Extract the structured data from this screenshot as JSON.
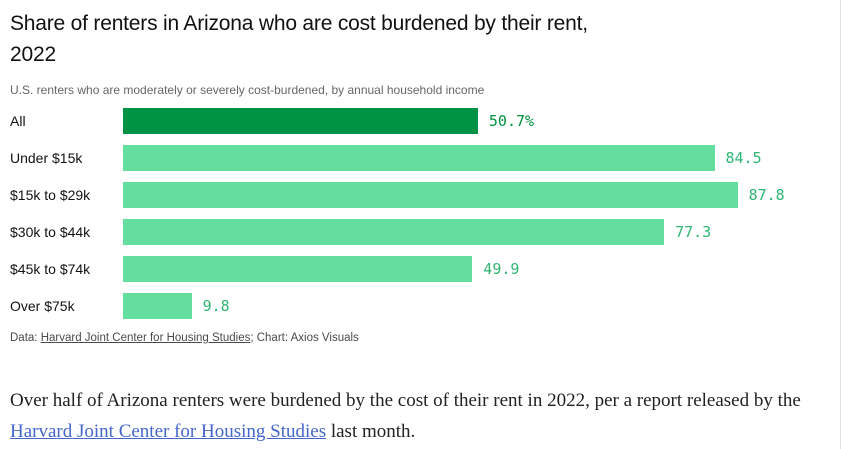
{
  "header": {
    "title": "Share of renters in Arizona who are cost burdened by their rent,\n2022",
    "subtitle": "U.S. renters who are moderately or severely cost-burdened, by annual household income"
  },
  "chart_data": {
    "type": "bar",
    "orientation": "horizontal",
    "title": "Share of renters in Arizona who are cost burdened by their rent, 2022",
    "subtitle": "U.S. renters who are moderately or severely cost-burdened, by annual household income",
    "categories": [
      "All",
      "Under $15k",
      "$15k to $29k",
      "$30k to $44k",
      "$45k to $74k",
      "Over $75k"
    ],
    "values": [
      50.7,
      84.5,
      87.8,
      77.3,
      49.9,
      9.8
    ],
    "value_labels": [
      "50.7%",
      "84.5",
      "87.8",
      "77.3",
      "49.9",
      "9.8"
    ],
    "unit": "percent",
    "xlim": [
      0,
      88
    ],
    "grid": false,
    "legend": false,
    "highlight_index": 0,
    "colors": {
      "highlight_bar": "#009245",
      "bar": "#63DE9E",
      "highlight_value": "#00923F",
      "value": "#2FB673"
    },
    "source": "Harvard Joint Center for Housing Studies",
    "credit": "Axios Visuals"
  },
  "footer": {
    "data_prefix": "Data: ",
    "source_link": "Harvard Joint Center for Housing Studies",
    "credit_suffix": "; Chart: Axios Visuals"
  },
  "article": {
    "text_before": "Over half of Arizona renters were burdened by the cost of their rent in 2022, per a report released by the ",
    "link_text": "Harvard Joint Center for Housing Studies",
    "text_after": " last month."
  }
}
